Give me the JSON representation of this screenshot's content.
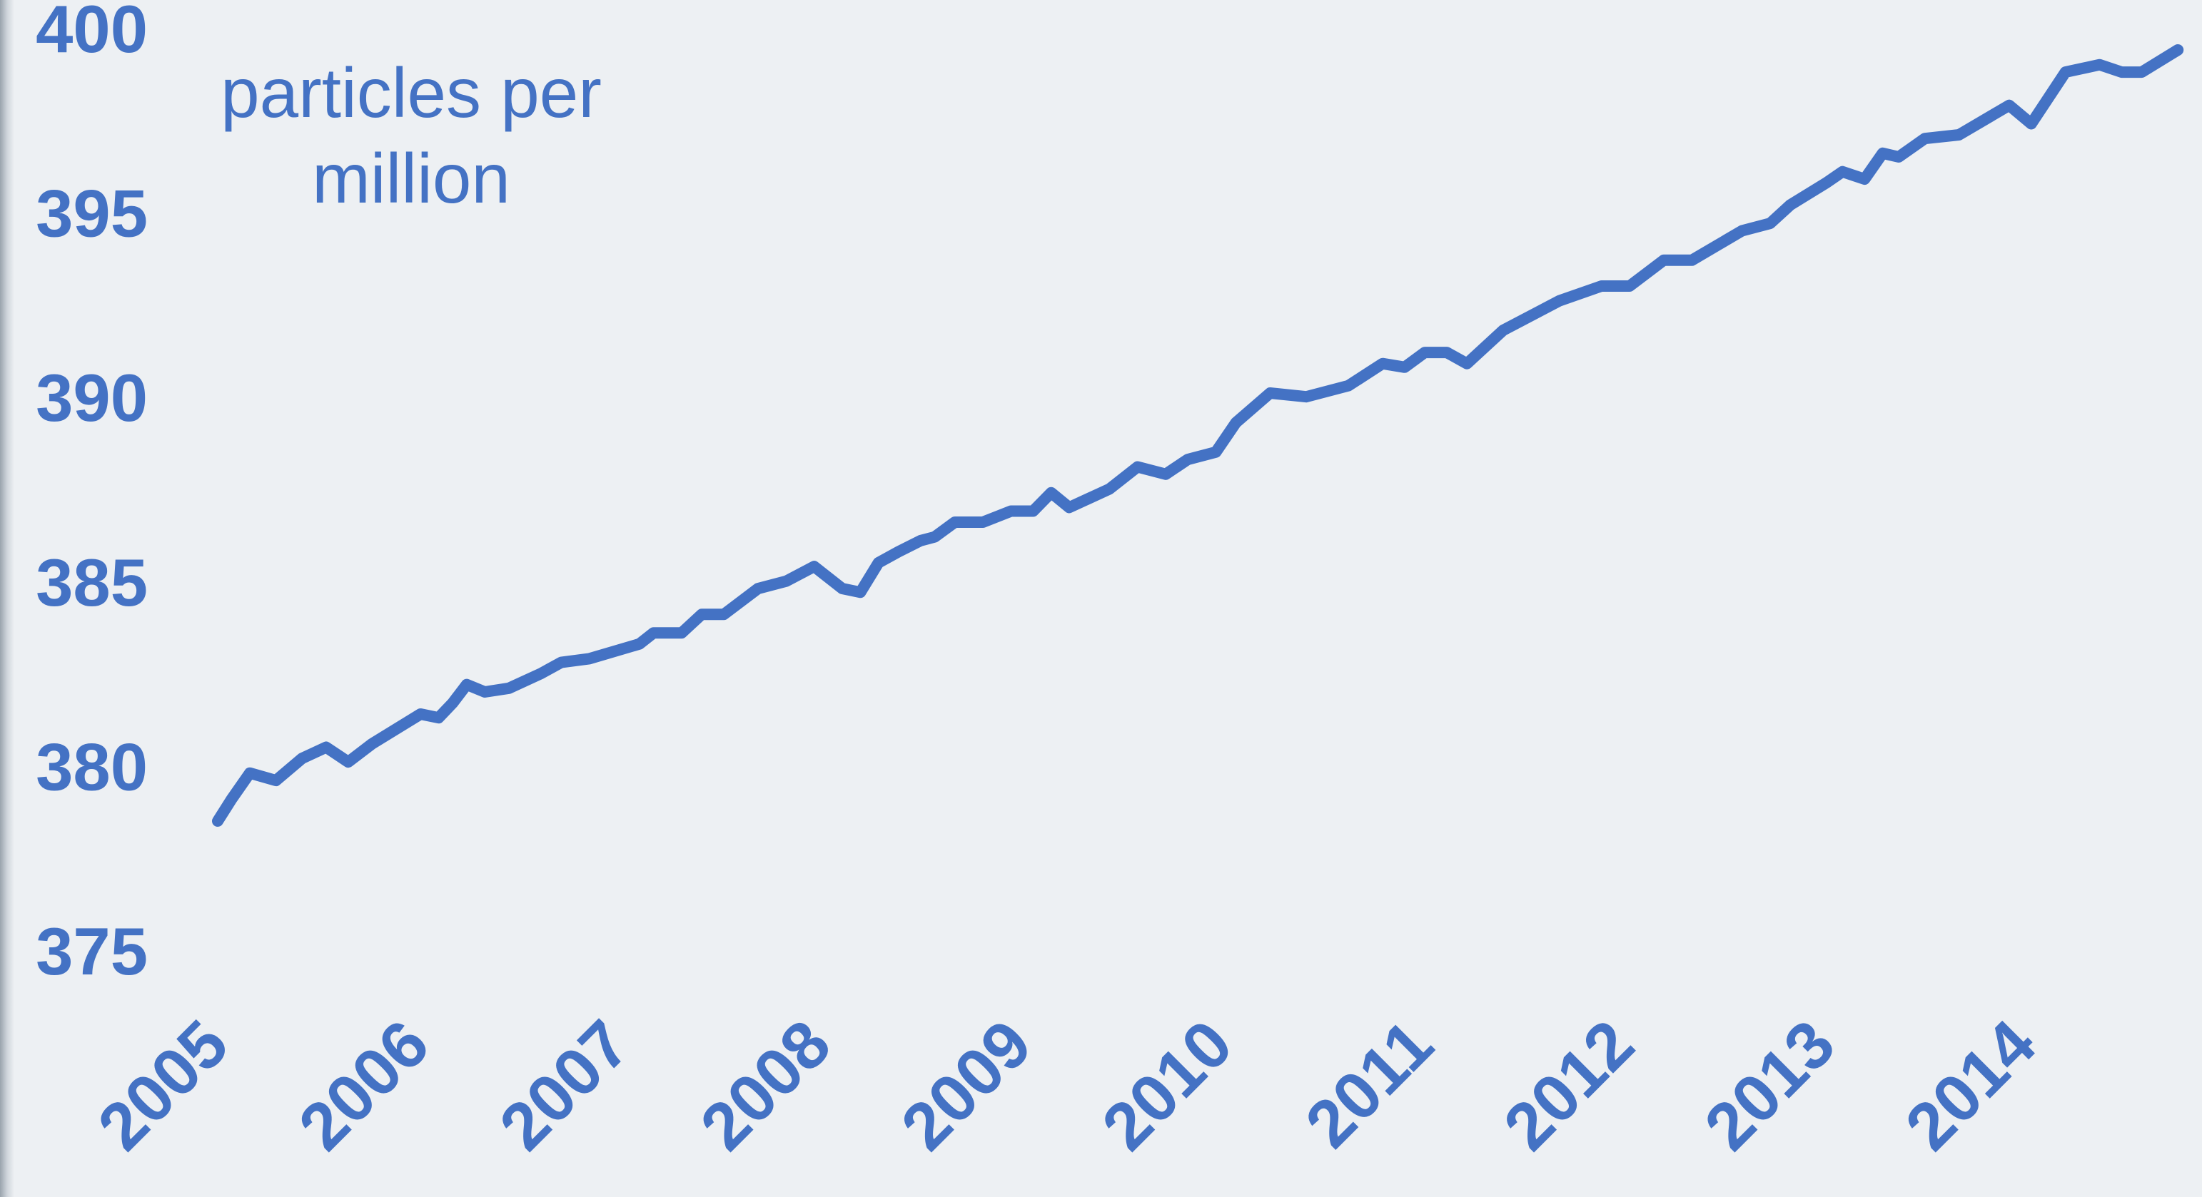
{
  "chart_data": {
    "type": "line",
    "ylabel": "particles per million",
    "x": [
      2005.0,
      2005.07,
      2005.16,
      2005.29,
      2005.42,
      2005.54,
      2005.65,
      2005.77,
      2006.01,
      2006.1,
      2006.17,
      2006.24,
      2006.33,
      2006.45,
      2006.61,
      2006.71,
      2006.85,
      2007.1,
      2007.17,
      2007.31,
      2007.41,
      2007.52,
      2007.69,
      2007.83,
      2007.97,
      2008.11,
      2008.2,
      2008.29,
      2008.39,
      2008.5,
      2008.57,
      2008.67,
      2008.81,
      2008.95,
      2009.06,
      2009.15,
      2009.24,
      2009.44,
      2009.58,
      2009.72,
      2009.83,
      2009.97,
      2010.07,
      2010.24,
      2010.42,
      2010.63,
      2010.8,
      2010.91,
      2011.01,
      2011.12,
      2011.22,
      2011.4,
      2011.68,
      2011.89,
      2012.03,
      2012.2,
      2012.34,
      2012.59,
      2012.73,
      2012.83,
      2013.01,
      2013.09,
      2013.2,
      2013.29,
      2013.37,
      2013.5,
      2013.67,
      2013.92,
      2014.03,
      2014.2,
      2014.37,
      2014.48,
      2014.58,
      2014.76
    ],
    "series": [
      {
        "color": "#4472c4",
        "values": [
          378.5,
          379.1,
          379.8,
          379.6,
          380.2,
          380.5,
          380.1,
          380.6,
          381.4,
          381.3,
          381.7,
          382.2,
          382.0,
          382.1,
          382.5,
          382.8,
          382.9,
          383.3,
          383.6,
          383.6,
          384.1,
          384.1,
          384.8,
          385.0,
          385.4,
          384.8,
          384.7,
          385.5,
          385.8,
          386.1,
          386.2,
          386.6,
          386.6,
          386.9,
          386.9,
          387.4,
          387.0,
          387.5,
          388.1,
          387.9,
          388.3,
          388.5,
          389.3,
          390.1,
          390.0,
          390.3,
          390.9,
          390.8,
          391.2,
          391.2,
          390.9,
          391.8,
          392.6,
          393.0,
          393.0,
          393.7,
          393.7,
          394.5,
          394.7,
          395.2,
          395.8,
          396.1,
          395.9,
          396.6,
          396.5,
          397.0,
          397.1,
          397.9,
          397.4,
          398.8,
          399.0,
          398.8,
          398.8,
          399.4
        ]
      }
    ],
    "xlim": [
      2005,
      2014.88
    ],
    "xticks": [
      2005,
      2006,
      2007,
      2008,
      2009,
      2010,
      2011,
      2012,
      2013,
      2014
    ],
    "ylim": [
      375,
      400
    ],
    "yticks": [
      375,
      380,
      385,
      390,
      395,
      400
    ],
    "grid": false
  }
}
